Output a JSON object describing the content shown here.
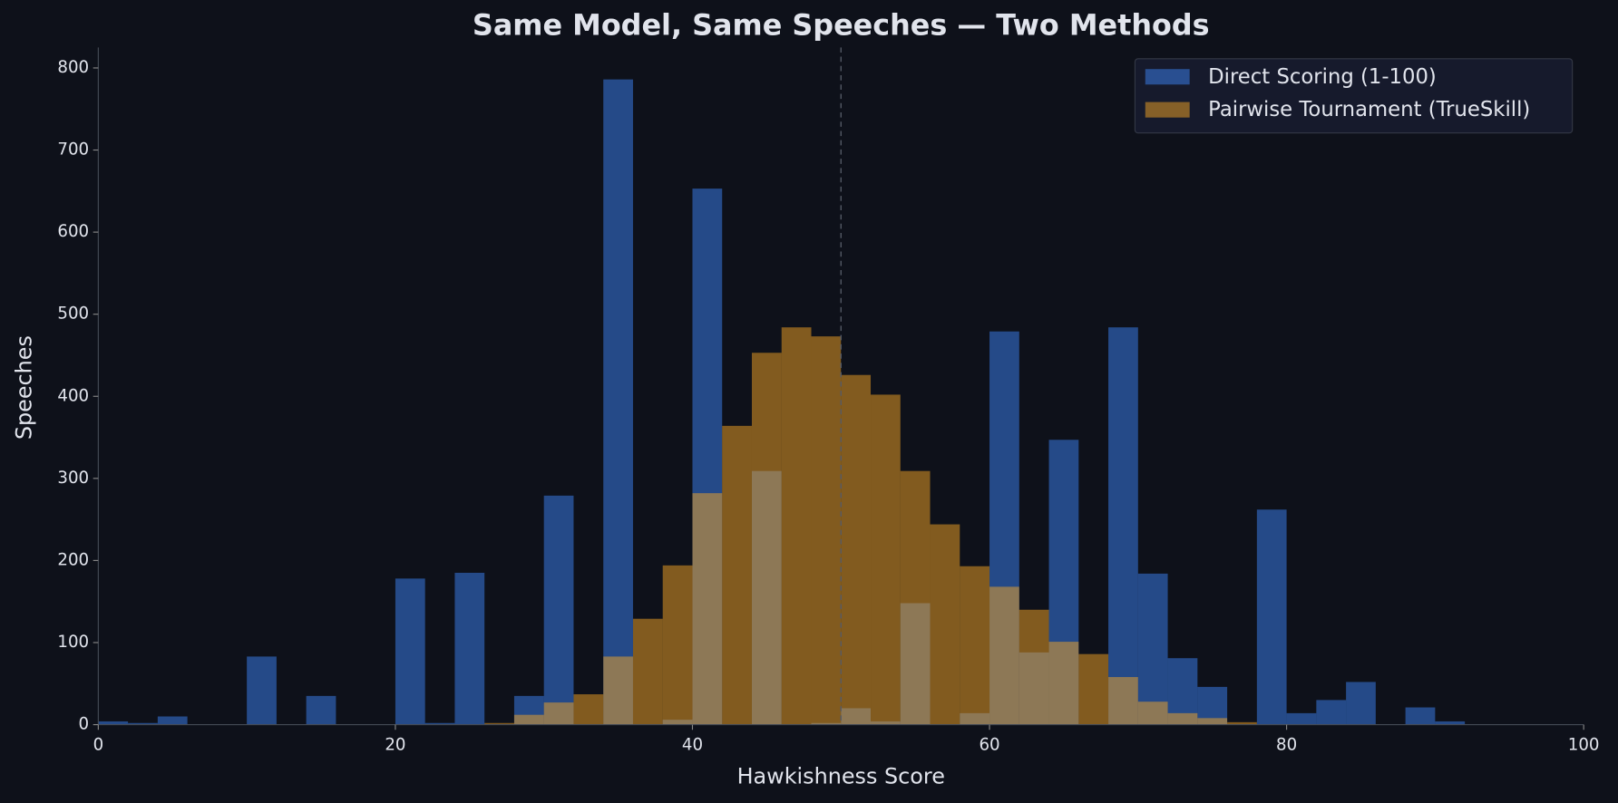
{
  "chart_data": {
    "type": "histogram",
    "title": "Same Model, Same Speeches — Two Methods",
    "xlabel": "Hawkishness Score",
    "ylabel": "Speeches",
    "bins": [
      0,
      2,
      4,
      6,
      8,
      10,
      12,
      14,
      16,
      18,
      20,
      22,
      24,
      26,
      28,
      30,
      32,
      34,
      36,
      38,
      40,
      42,
      44,
      46,
      48,
      50,
      52,
      54,
      56,
      58,
      60,
      62,
      64,
      66,
      68,
      70,
      72,
      74,
      76,
      78,
      80,
      82,
      84,
      86,
      88,
      90,
      92,
      94,
      96,
      98,
      100
    ],
    "series": [
      {
        "name": "Direct Scoring (1-100)",
        "color": "#3c83f5",
        "alpha": 0.5,
        "values": [
          4,
          2,
          10,
          0,
          0,
          83,
          0,
          35,
          0,
          0,
          178,
          2,
          185,
          0,
          35,
          279,
          0,
          786,
          0,
          6,
          653,
          0,
          309,
          0,
          2,
          20,
          4,
          148,
          0,
          14,
          479,
          88,
          347,
          0,
          484,
          184,
          81,
          46,
          0,
          262,
          14,
          30,
          52,
          0,
          21,
          4,
          0,
          0,
          0,
          0
        ]
      },
      {
        "name": "Pairwise Tournament (TrueSkill)",
        "color": "#f5a623",
        "alpha": 0.5,
        "values": [
          0,
          0,
          0,
          0,
          0,
          0,
          0,
          0,
          0,
          0,
          0,
          0,
          0,
          2,
          12,
          27,
          37,
          83,
          129,
          194,
          282,
          364,
          453,
          484,
          473,
          426,
          402,
          309,
          244,
          193,
          168,
          140,
          101,
          86,
          58,
          28,
          14,
          8,
          3,
          0,
          0,
          0,
          0,
          0,
          0,
          0,
          0,
          0,
          0,
          0
        ]
      }
    ],
    "vline": 50,
    "xlim": [
      0,
      100
    ],
    "xticks": [
      0,
      20,
      40,
      60,
      80,
      100
    ],
    "ylim": [
      0,
      825
    ],
    "yticks": [
      0,
      100,
      200,
      300,
      400,
      500,
      600,
      700,
      800
    ],
    "legend": "upper right"
  }
}
